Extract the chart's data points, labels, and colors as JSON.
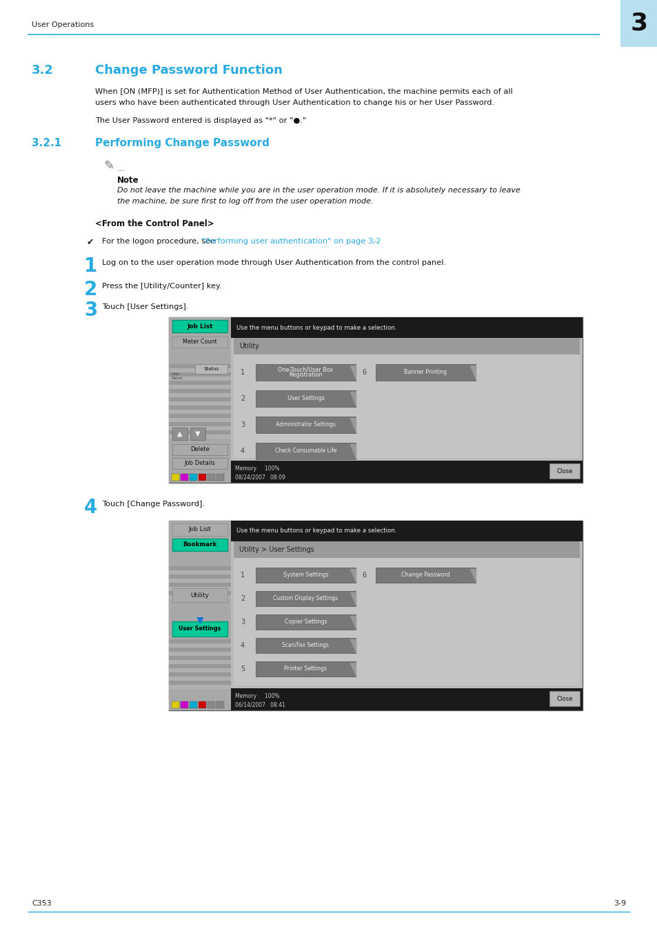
{
  "page_bg": "#ffffff",
  "header_line_color": "#29abe2",
  "header_text": "User Operations",
  "header_number": "3",
  "header_number_bg": "#b8dff0",
  "section_32_num": "3.2",
  "section_32_title": "Change Password Function",
  "section_color": "#29abe2",
  "body_text_32_line1": "When [ON (MFP)] is set for Authentication Method of User Authentication, the machine permits each of all",
  "body_text_32_line2": "users who have been authenticated through User Authentication to change his or her User Password.",
  "body_text_32b": "The User Password entered is displayed as \"*\" or \"●.\"",
  "section_321_num": "3.2.1",
  "section_321_title": "Performing Change Password",
  "note_label": "Note",
  "note_text_line1": "Do not leave the machine while you are in the user operation mode. If it is absolutely necessary to leave",
  "note_text_line2": "the machine, be sure first to log off from the user operation mode.",
  "control_panel_header": "<From the Control Panel>",
  "check_text": "For the logon procedure, see ",
  "check_link": "\"Performing user authentication\" on page 3-2",
  "check_period": ".",
  "step1_text": "Log on to the user operation mode through User Authentication from the control panel.",
  "step2_text": "Press the [Utility/Counter] key.",
  "step3_text": "Touch [User Settings].",
  "step4_text": "Touch [Change Password].",
  "footer_left": "C353",
  "footer_right": "3-9",
  "screen1_header": "Use the menu buttons or keypad to make a selection.",
  "screen1_section": "Utility",
  "screen1_btn1a": "One-Touch/User Box",
  "screen1_btn1b": "Registration",
  "screen1_btn2": "User Settings",
  "screen1_btn3": "Administrator Settings",
  "screen1_btn4": "Check Consumable Life",
  "screen1_btn6": "Banner Printing",
  "screen1_date_line1": "08/24/2007   08:09",
  "screen1_date_line2": "Memory     100%",
  "screen2_header": "Use the menu buttons or keypad to make a selection.",
  "screen2_section": "Utility > User Settings",
  "screen2_btn1": "System Settings",
  "screen2_btn2": "Custom Display Settings",
  "screen2_btn3": "Copier Settings",
  "screen2_btn4": "Scan/Fax Settings",
  "screen2_btn5": "Printer Settings",
  "screen2_btn6": "Change Password",
  "screen2_date_line1": "06/14/2007   08:41",
  "screen2_date_line2": "Memory     100%",
  "teal_color": "#00c896",
  "dark_btn_color": "#7a7a7a",
  "sidebar_color": "#a8a8a8",
  "sidebar_stripe1": "#9a9a9a",
  "sidebar_stripe2": "#b0b0b0",
  "content_bg": "#c0c0c0",
  "section_bar_color": "#a0a0a0",
  "close_btn_color": "#b8b8b8",
  "arrow_btn_color": "#909090"
}
